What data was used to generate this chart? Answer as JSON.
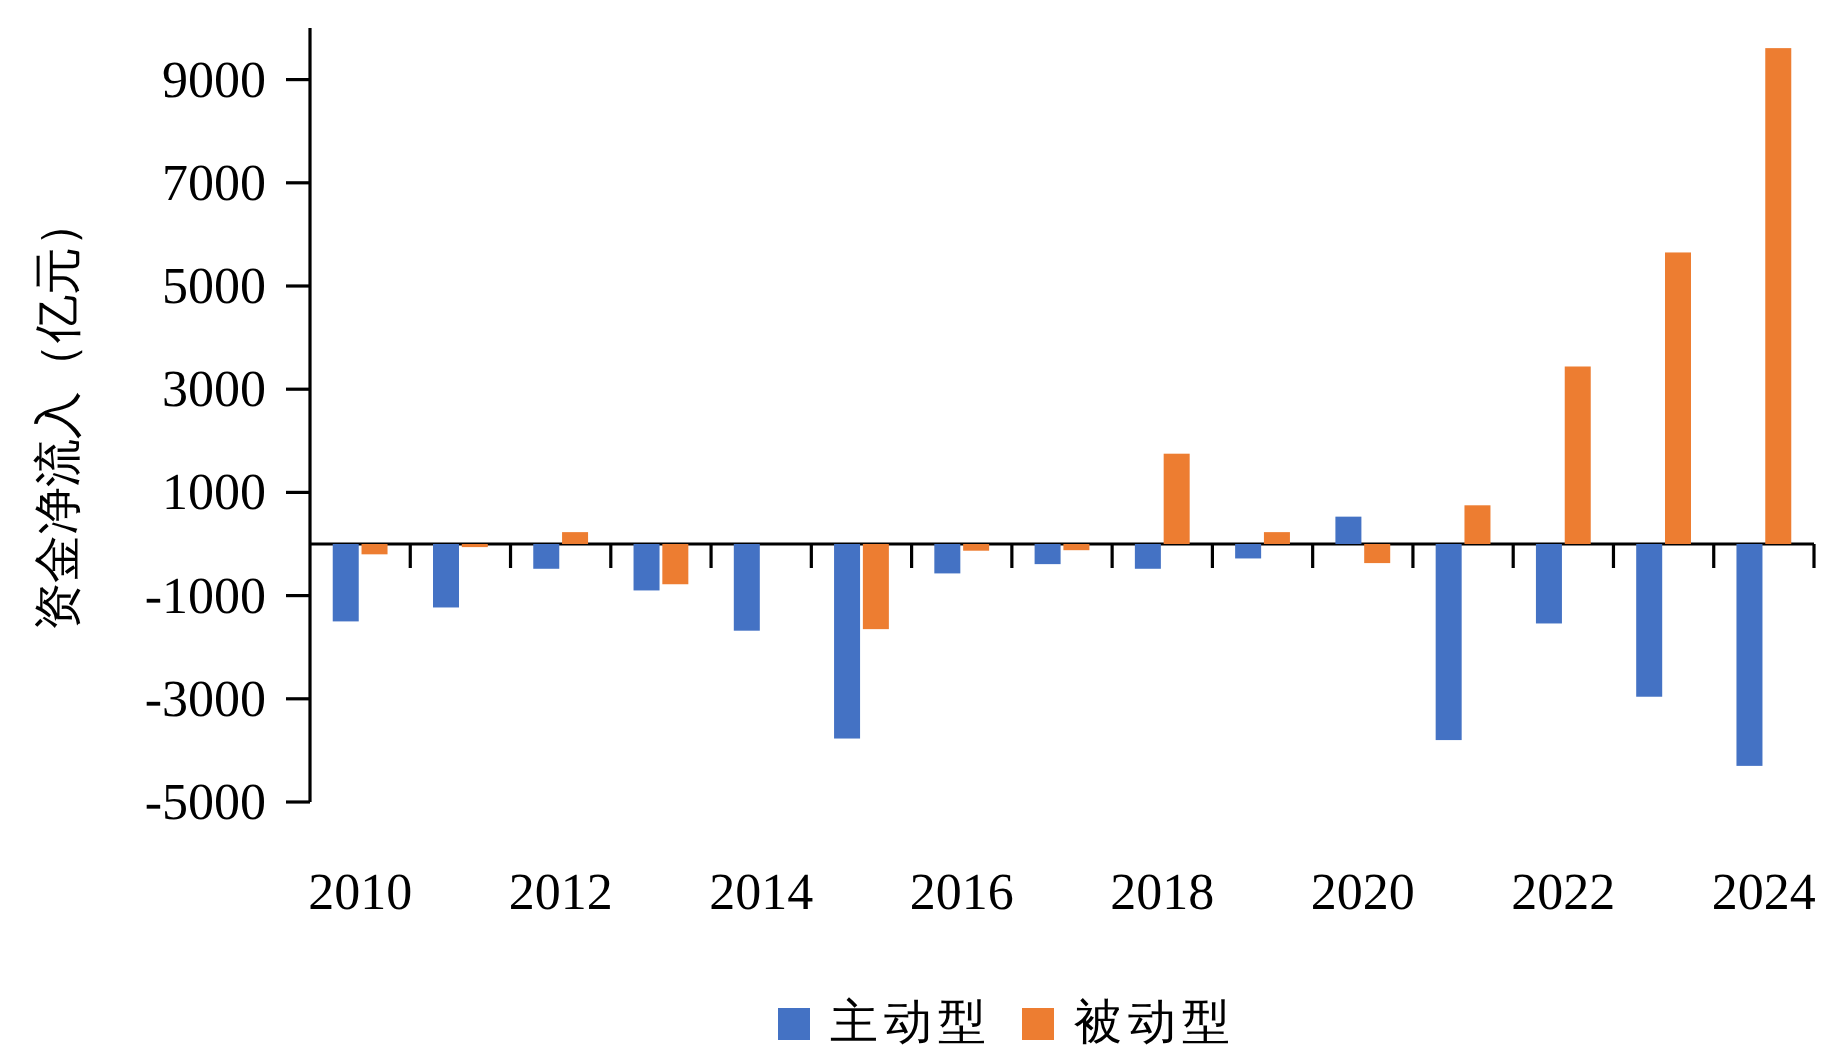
{
  "chart_data": {
    "type": "bar",
    "ylabel": "资金净流入（亿元）",
    "categories": [
      "2010",
      null,
      "2012",
      null,
      "2014",
      null,
      "2016",
      null,
      "2018",
      null,
      "2020",
      null,
      "2022",
      null,
      "2024"
    ],
    "series": [
      {
        "name": "主动型",
        "color": "#4472c4",
        "values": [
          -1500,
          -1230,
          -480,
          -900,
          -1680,
          -3770,
          -570,
          -390,
          -480,
          -280,
          530,
          -3800,
          -1540,
          -2960,
          -4300
        ]
      },
      {
        "name": "被动型",
        "color": "#ed7d31",
        "values": [
          -200,
          -60,
          230,
          -780,
          0,
          -1650,
          -130,
          -120,
          1750,
          230,
          -370,
          750,
          3440,
          5650,
          9610
        ]
      }
    ],
    "ylim": [
      -5000,
      10000
    ],
    "yticks": [
      -5000,
      -3000,
      -1000,
      1000,
      3000,
      5000,
      7000,
      9000
    ],
    "grid": false,
    "legend": "bottom"
  }
}
